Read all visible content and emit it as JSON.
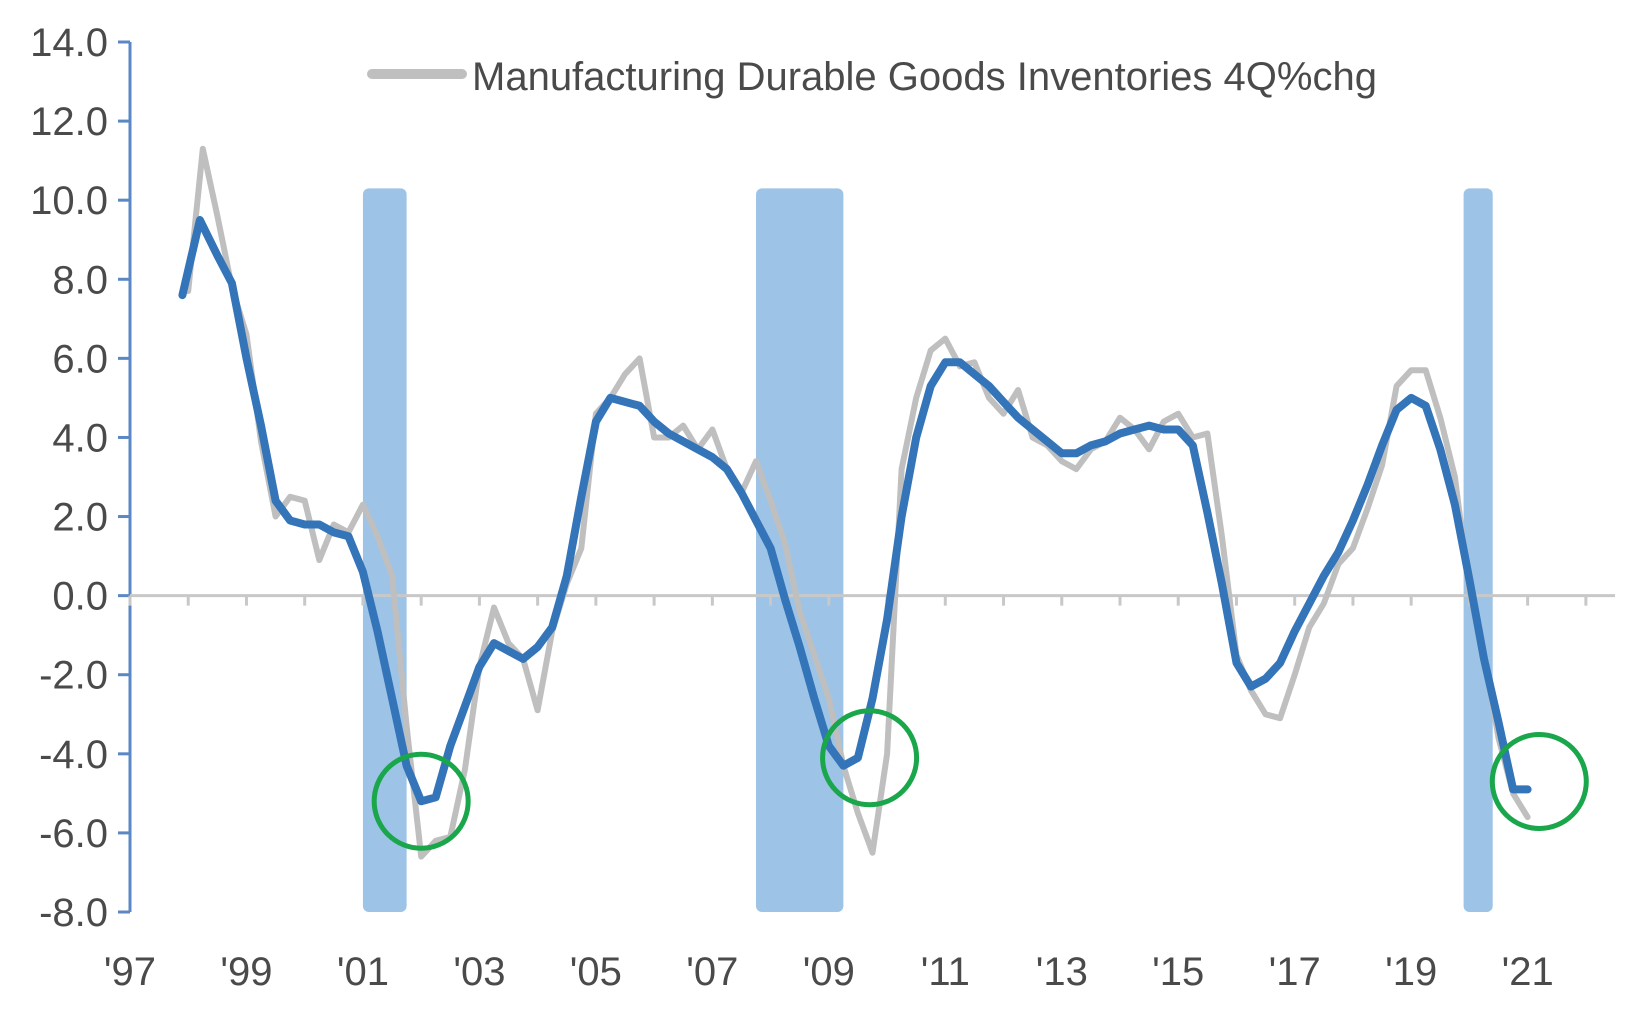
{
  "chart_data": {
    "type": "line",
    "title": "",
    "xlabel": "",
    "ylabel": "",
    "ylim": [
      -8.0,
      14.0
    ],
    "xlim": [
      1997,
      2022.5
    ],
    "y_ticks": [
      "14.0",
      "12.0",
      "10.0",
      "8.0",
      "6.0",
      "4.0",
      "2.0",
      "0.0",
      "-2.0",
      "-4.0",
      "-6.0",
      "-8.0"
    ],
    "y_tick_values": [
      14,
      12,
      10,
      8,
      6,
      4,
      2,
      0,
      -2,
      -4,
      -6,
      -8
    ],
    "x_ticks": [
      "'97",
      "'99",
      "'01",
      "'03",
      "'05",
      "'07",
      "'09",
      "'11",
      "'13",
      "'15",
      "'17",
      "'19",
      "'21"
    ],
    "x_tick_values": [
      1997,
      1999,
      2001,
      2003,
      2005,
      2007,
      2009,
      2011,
      2013,
      2015,
      2017,
      2019,
      2021
    ],
    "recessions": [
      [
        2001.0,
        2001.75
      ],
      [
        2007.75,
        2009.25
      ],
      [
        2019.9,
        2020.4
      ]
    ],
    "recession_top": 10.3,
    "series": [
      {
        "name": "Manufacturing Durable Goods Inventories 4Q%chg",
        "color": "#bfbfbf",
        "x": [
          1998.0,
          1998.25,
          1998.5,
          1998.75,
          1999.0,
          1999.25,
          1999.5,
          1999.75,
          2000.0,
          2000.25,
          2000.5,
          2000.75,
          2001.0,
          2001.25,
          2001.5,
          2001.75,
          2002.0,
          2002.25,
          2002.5,
          2002.75,
          2003.0,
          2003.25,
          2003.5,
          2003.75,
          2004.0,
          2004.25,
          2004.5,
          2004.75,
          2005.0,
          2005.25,
          2005.5,
          2005.75,
          2006.0,
          2006.25,
          2006.5,
          2006.75,
          2007.0,
          2007.25,
          2007.5,
          2007.75,
          2008.0,
          2008.25,
          2008.5,
          2008.75,
          2009.0,
          2009.25,
          2009.5,
          2009.75,
          2010.0,
          2010.25,
          2010.5,
          2010.75,
          2011.0,
          2011.25,
          2011.5,
          2011.75,
          2012.0,
          2012.25,
          2012.5,
          2012.75,
          2013.0,
          2013.25,
          2013.5,
          2013.75,
          2014.0,
          2014.25,
          2014.5,
          2014.75,
          2015.0,
          2015.25,
          2015.5,
          2015.75,
          2016.0,
          2016.25,
          2016.5,
          2016.75,
          2017.0,
          2017.25,
          2017.5,
          2017.75,
          2018.0,
          2018.25,
          2018.5,
          2018.75,
          2019.0,
          2019.25,
          2019.5,
          2019.75,
          2020.0,
          2020.25,
          2020.5,
          2020.75,
          2021.0
        ],
        "values": [
          7.7,
          11.3,
          9.6,
          7.8,
          6.6,
          3.9,
          2.0,
          2.5,
          2.4,
          0.9,
          1.8,
          1.6,
          2.3,
          1.5,
          0.5,
          -3.3,
          -6.6,
          -6.2,
          -6.1,
          -4.4,
          -1.8,
          -0.3,
          -1.2,
          -1.6,
          -2.9,
          -0.9,
          0.3,
          1.2,
          4.6,
          5.0,
          5.6,
          6.0,
          4.0,
          4.0,
          4.3,
          3.7,
          4.2,
          3.2,
          2.6,
          3.4,
          2.4,
          1.3,
          -0.4,
          -1.5,
          -2.6,
          -4.3,
          -5.5,
          -6.5,
          -4.0,
          3.2,
          5.0,
          6.2,
          6.5,
          5.8,
          5.9,
          5.0,
          4.6,
          5.2,
          4.0,
          3.8,
          3.4,
          3.2,
          3.7,
          3.9,
          4.5,
          4.2,
          3.7,
          4.4,
          4.6,
          4.0,
          4.1,
          1.5,
          -1.5,
          -2.4,
          -3.0,
          -3.1,
          -2.0,
          -0.8,
          -0.2,
          0.8,
          1.2,
          2.2,
          3.3,
          5.3,
          5.7,
          5.7,
          4.5,
          3.0,
          0.1,
          -1.5,
          -3.6,
          -5.0,
          -5.6
        ]
      },
      {
        "name": "",
        "color": "#3474b8",
        "x": [
          1997.9,
          1998.2,
          1998.5,
          1998.75,
          1999.0,
          1999.25,
          1999.5,
          1999.75,
          2000.0,
          2000.25,
          2000.5,
          2000.75,
          2001.0,
          2001.25,
          2001.5,
          2001.75,
          2002.0,
          2002.25,
          2002.5,
          2002.75,
          2003.0,
          2003.25,
          2003.5,
          2003.75,
          2004.0,
          2004.25,
          2004.5,
          2004.75,
          2005.0,
          2005.25,
          2005.5,
          2005.75,
          2006.0,
          2006.25,
          2006.5,
          2006.75,
          2007.0,
          2007.25,
          2007.5,
          2007.75,
          2008.0,
          2008.25,
          2008.5,
          2008.75,
          2009.0,
          2009.25,
          2009.5,
          2009.75,
          2010.0,
          2010.25,
          2010.5,
          2010.75,
          2011.0,
          2011.25,
          2011.5,
          2011.75,
          2012.0,
          2012.25,
          2012.5,
          2012.75,
          2013.0,
          2013.25,
          2013.5,
          2013.75,
          2014.0,
          2014.25,
          2014.5,
          2014.75,
          2015.0,
          2015.25,
          2015.5,
          2015.75,
          2016.0,
          2016.25,
          2016.5,
          2016.75,
          2017.0,
          2017.25,
          2017.5,
          2017.75,
          2018.0,
          2018.25,
          2018.5,
          2018.75,
          2019.0,
          2019.25,
          2019.5,
          2019.75,
          2020.0,
          2020.25,
          2020.5,
          2020.75,
          2021.0
        ],
        "values": [
          7.6,
          9.5,
          8.6,
          7.9,
          6.0,
          4.3,
          2.4,
          1.9,
          1.8,
          1.8,
          1.6,
          1.5,
          0.6,
          -0.9,
          -2.6,
          -4.3,
          -5.2,
          -5.1,
          -3.8,
          -2.8,
          -1.8,
          -1.2,
          -1.4,
          -1.6,
          -1.3,
          -0.8,
          0.5,
          2.5,
          4.4,
          5.0,
          4.9,
          4.8,
          4.4,
          4.1,
          3.9,
          3.7,
          3.5,
          3.2,
          2.6,
          1.9,
          1.2,
          -0.1,
          -1.3,
          -2.6,
          -3.8,
          -4.3,
          -4.1,
          -2.6,
          -0.6,
          2.0,
          4.0,
          5.3,
          5.9,
          5.9,
          5.6,
          5.3,
          4.9,
          4.5,
          4.2,
          3.9,
          3.6,
          3.6,
          3.8,
          3.9,
          4.1,
          4.2,
          4.3,
          4.2,
          4.2,
          3.8,
          2.1,
          0.3,
          -1.7,
          -2.3,
          -2.1,
          -1.7,
          -0.9,
          -0.2,
          0.5,
          1.1,
          1.9,
          2.8,
          3.8,
          4.7,
          5.0,
          4.8,
          3.7,
          2.3,
          0.4,
          -1.6,
          -3.2,
          -4.9,
          -4.9
        ]
      }
    ],
    "annotations": [
      {
        "type": "circle",
        "x": 2002.0,
        "y": -5.2
      },
      {
        "type": "circle",
        "x": 2009.7,
        "y": -4.1
      },
      {
        "type": "circle",
        "x": 2021.2,
        "y": -4.7
      }
    ],
    "annotation_color": "#1aa64a",
    "recession_color": "#9dc3e6",
    "axis_color": "#5b87c5",
    "zero_line_color": "#c8c8c8"
  }
}
